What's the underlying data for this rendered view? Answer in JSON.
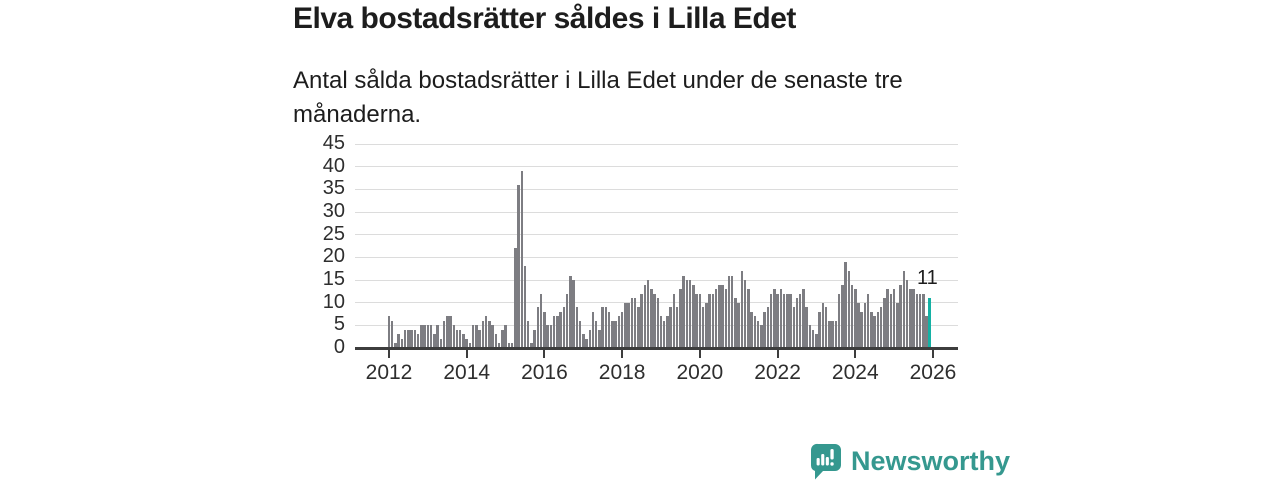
{
  "title": "Elva bostadsrätter såldes i Lilla Edet",
  "subtitle": "Antal sålda bostadsrätter i Lilla Edet under de senaste tre månaderna.",
  "annotation": {
    "label": "11"
  },
  "branding": {
    "name": "Newsworthy",
    "icon": "newsworthy-speech-bubble-bar-chart-icon"
  },
  "colors": {
    "bar": "#7d7d82",
    "highlight": "#14b1a4",
    "axis": "#3d3d3d",
    "grid": "#dcdcdc",
    "text": "#1d1d1d",
    "brand": "#35988f"
  },
  "chart_data": {
    "type": "bar",
    "title": "Elva bostadsrätter såldes i Lilla Edet",
    "subtitle": "Antal sålda bostadsrätter i Lilla Edet under de senaste tre månaderna.",
    "xlabel": "",
    "ylabel": "",
    "frequency": "monthly",
    "x_start": "2012-01",
    "x_end": "2025-12",
    "ylim": [
      0,
      45
    ],
    "yticks": [
      0,
      5,
      10,
      15,
      20,
      25,
      30,
      35,
      40,
      45
    ],
    "xticks": [
      2012,
      2014,
      2016,
      2018,
      2020,
      2022,
      2024,
      2026
    ],
    "grid": true,
    "legend": false,
    "highlight_last": true,
    "last_value_label": "11",
    "values": [
      7,
      6,
      1,
      3,
      2,
      4,
      4,
      4,
      4,
      3,
      5,
      5,
      5,
      5,
      3,
      5,
      2,
      6,
      7,
      7,
      5,
      4,
      4,
      3,
      2,
      1,
      5,
      5,
      4,
      6,
      7,
      6,
      5,
      3,
      1,
      4,
      5,
      1,
      1,
      22,
      36,
      39,
      18,
      6,
      1,
      4,
      9,
      12,
      8,
      5,
      5,
      7,
      7,
      8,
      9,
      12,
      16,
      15,
      9,
      6,
      3,
      2,
      4,
      8,
      6,
      4,
      9,
      9,
      8,
      6,
      6,
      7,
      8,
      10,
      10,
      11,
      11,
      9,
      12,
      14,
      15,
      13,
      12,
      11,
      7,
      6,
      7,
      9,
      12,
      9,
      13,
      16,
      15,
      15,
      14,
      12,
      12,
      9,
      10,
      12,
      12,
      13,
      14,
      14,
      13,
      16,
      16,
      11,
      10,
      17,
      15,
      13,
      8,
      7,
      6,
      5,
      8,
      9,
      12,
      13,
      12,
      13,
      12,
      12,
      12,
      9,
      11,
      12,
      13,
      9,
      5,
      4,
      3,
      8,
      10,
      9,
      6,
      6,
      6,
      12,
      14,
      19,
      17,
      14,
      13,
      10,
      8,
      10,
      12,
      8,
      7,
      8,
      9,
      11,
      13,
      12,
      13,
      10,
      14,
      17,
      15,
      13,
      13,
      12,
      12,
      12,
      7,
      11
    ]
  }
}
